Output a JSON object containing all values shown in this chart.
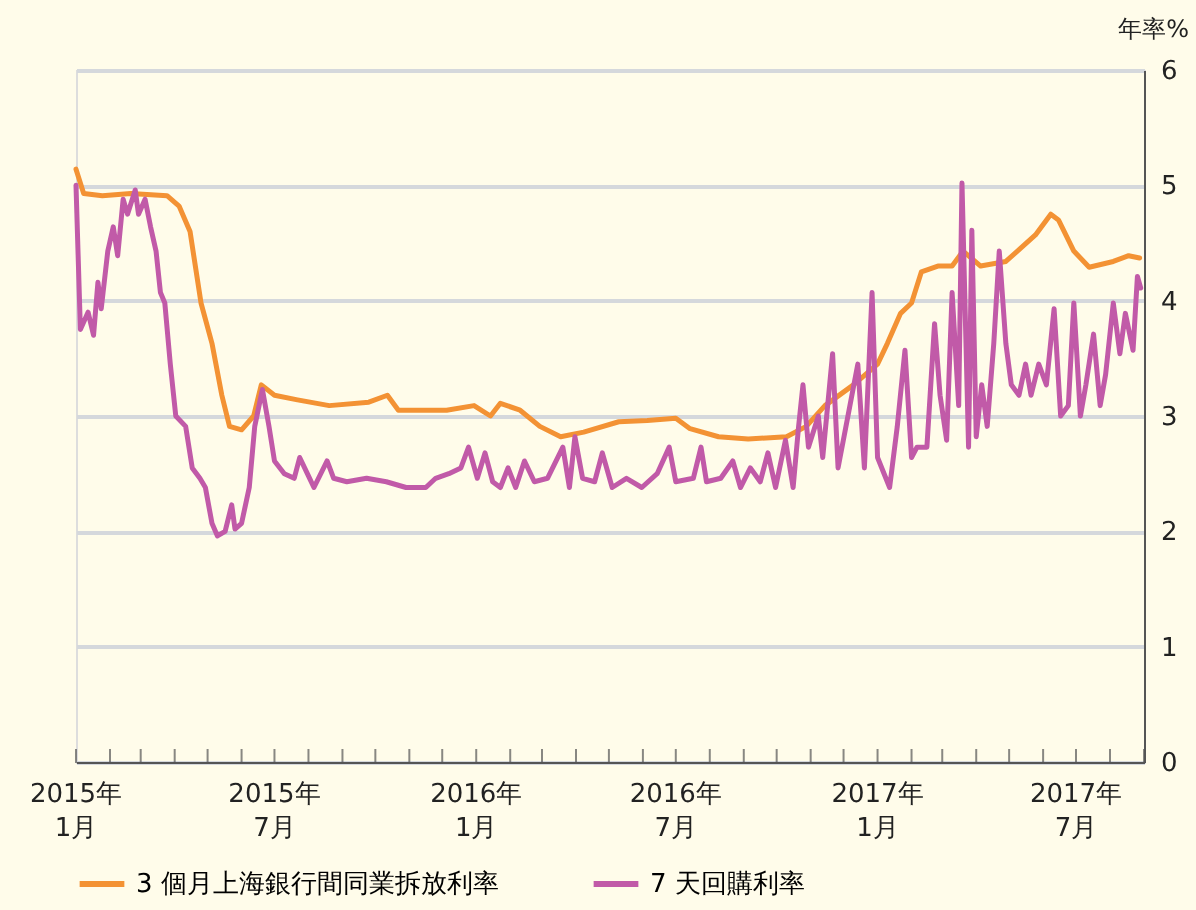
{
  "chart_data": {
    "type": "line",
    "ylabel": "年率%",
    "xlim": [
      "2015-01",
      "2017-09"
    ],
    "ylim": [
      0,
      6
    ],
    "yticks": [
      0,
      1,
      2,
      3,
      4,
      5,
      6
    ],
    "grid": "y",
    "legend": "bottom",
    "xticks": [
      {
        "value": "2015-01",
        "label": "2015年\n1月"
      },
      {
        "value": "2015-02",
        "label": null
      },
      {
        "value": "2015-03",
        "label": null
      },
      {
        "value": "2015-04",
        "label": null
      },
      {
        "value": "2015-05",
        "label": null
      },
      {
        "value": "2015-06",
        "label": null
      },
      {
        "value": "2015-07",
        "label": "2015年\n7月"
      },
      {
        "value": "2015-08",
        "label": null
      },
      {
        "value": "2015-09",
        "label": null
      },
      {
        "value": "2015-10",
        "label": null
      },
      {
        "value": "2015-11",
        "label": null
      },
      {
        "value": "2015-12",
        "label": null
      },
      {
        "value": "2016-01",
        "label": "2016年\n1月"
      },
      {
        "value": "2016-02",
        "label": null
      },
      {
        "value": "2016-03",
        "label": null
      },
      {
        "value": "2016-04",
        "label": null
      },
      {
        "value": "2016-05",
        "label": null
      },
      {
        "value": "2016-06",
        "label": null
      },
      {
        "value": "2016-07",
        "label": "2016年\n7月"
      },
      {
        "value": "2016-08",
        "label": null
      },
      {
        "value": "2016-09",
        "label": null
      },
      {
        "value": "2016-10",
        "label": null
      },
      {
        "value": "2016-11",
        "label": null
      },
      {
        "value": "2016-12",
        "label": null
      },
      {
        "value": "2017-01",
        "label": "2017年\n1月"
      },
      {
        "value": "2017-02",
        "label": null
      },
      {
        "value": "2017-03",
        "label": null
      },
      {
        "value": "2017-04",
        "label": null
      },
      {
        "value": "2017-05",
        "label": null
      },
      {
        "value": "2017-06",
        "label": null
      },
      {
        "value": "2017-07",
        "label": "2017年\n7月"
      },
      {
        "value": "2017-08",
        "label": null
      },
      {
        "value": "2017-09",
        "label": null
      }
    ],
    "series": [
      {
        "name": "3 個月上海銀行間同業拆放利率",
        "color": "#f39234",
        "x": [
          "2015-01-01",
          "2015-01-08",
          "2015-01-25",
          "2015-02-20",
          "2015-03-25",
          "2015-04-05",
          "2015-04-15",
          "2015-04-25",
          "2015-05-05",
          "2015-05-14",
          "2015-05-21",
          "2015-06-01",
          "2015-06-12",
          "2015-06-19",
          "2015-07-01",
          "2015-07-22",
          "2015-08-20",
          "2015-09-25",
          "2015-10-12",
          "2015-10-22",
          "2015-12-05",
          "2015-12-30",
          "2016-01-14",
          "2016-01-23",
          "2016-02-10",
          "2016-02-28",
          "2016-03-18",
          "2016-04-08",
          "2016-05-10",
          "2016-06-05",
          "2016-07-01",
          "2016-07-14",
          "2016-08-09",
          "2016-09-05",
          "2016-10-10",
          "2016-10-28",
          "2016-11-14",
          "2016-12-10",
          "2017-01-01",
          "2017-01-10",
          "2017-01-22",
          "2017-02-01",
          "2017-02-10",
          "2017-02-25",
          "2017-03-10",
          "2017-03-20",
          "2017-04-05",
          "2017-04-28",
          "2017-05-25",
          "2017-06-08",
          "2017-06-15",
          "2017-06-29",
          "2017-07-13",
          "2017-08-04",
          "2017-08-18",
          "2017-08-28"
        ],
        "values": [
          5.14,
          4.93,
          4.91,
          4.93,
          4.91,
          4.82,
          4.6,
          3.98,
          3.63,
          3.18,
          2.91,
          2.88,
          3.0,
          3.27,
          3.18,
          3.14,
          3.09,
          3.12,
          3.18,
          3.05,
          3.05,
          3.09,
          3.0,
          3.11,
          3.05,
          2.91,
          2.82,
          2.86,
          2.95,
          2.96,
          2.98,
          2.89,
          2.82,
          2.8,
          2.82,
          2.91,
          3.09,
          3.27,
          3.45,
          3.63,
          3.89,
          3.98,
          4.25,
          4.3,
          4.3,
          4.43,
          4.3,
          4.34,
          4.57,
          4.75,
          4.7,
          4.43,
          4.29,
          4.34,
          4.39,
          4.37
        ]
      },
      {
        "name": "7 天回購利率",
        "color": "#c15aa8",
        "x": [
          "2015-01-01",
          "2015-01-05",
          "2015-01-12",
          "2015-01-17",
          "2015-01-21",
          "2015-01-24",
          "2015-01-30",
          "2015-02-04",
          "2015-02-08",
          "2015-02-13",
          "2015-02-17",
          "2015-02-24",
          "2015-02-27",
          "2015-03-05",
          "2015-03-10",
          "2015-03-15",
          "2015-03-19",
          "2015-03-23",
          "2015-03-28",
          "2015-04-02",
          "2015-04-11",
          "2015-04-17",
          "2015-04-24",
          "2015-04-29",
          "2015-05-05",
          "2015-05-10",
          "2015-05-17",
          "2015-05-23",
          "2015-05-26",
          "2015-06-01",
          "2015-06-08",
          "2015-06-13",
          "2015-06-20",
          "2015-06-26",
          "2015-07-01",
          "2015-07-10",
          "2015-07-19",
          "2015-07-24",
          "2015-07-31",
          "2015-08-06",
          "2015-08-18",
          "2015-08-24",
          "2015-09-05",
          "2015-09-23",
          "2015-10-11",
          "2015-10-29",
          "2015-11-16",
          "2015-11-25",
          "2015-12-07",
          "2015-12-18",
          "2015-12-25",
          "2016-01-02",
          "2016-01-09",
          "2016-01-16",
          "2016-01-23",
          "2016-01-30",
          "2016-02-06",
          "2016-02-14",
          "2016-02-23",
          "2016-03-06",
          "2016-03-20",
          "2016-03-26",
          "2016-03-31",
          "2016-04-07",
          "2016-04-18",
          "2016-04-25",
          "2016-05-04",
          "2016-05-17",
          "2016-05-31",
          "2016-06-14",
          "2016-06-25",
          "2016-07-01",
          "2016-07-17",
          "2016-07-24",
          "2016-07-29",
          "2016-08-11",
          "2016-08-22",
          "2016-08-29",
          "2016-09-07",
          "2016-09-16",
          "2016-09-23",
          "2016-09-30",
          "2016-10-09",
          "2016-10-16",
          "2016-10-21",
          "2016-10-25",
          "2016-10-30",
          "2016-11-08",
          "2016-11-12",
          "2016-11-21",
          "2016-11-26",
          "2016-12-05",
          "2016-12-14",
          "2016-12-20",
          "2016-12-27",
          "2017-01-01",
          "2017-01-12",
          "2017-01-19",
          "2017-01-26",
          "2017-02-01",
          "2017-02-06",
          "2017-02-15",
          "2017-02-22",
          "2017-02-27",
          "2017-03-05",
          "2017-03-10",
          "2017-03-16",
          "2017-03-19",
          "2017-03-25",
          "2017-03-28",
          "2017-04-01",
          "2017-04-06",
          "2017-04-11",
          "2017-04-17",
          "2017-04-22",
          "2017-04-28",
          "2017-05-03",
          "2017-05-10",
          "2017-05-16",
          "2017-05-21",
          "2017-05-28",
          "2017-06-04",
          "2017-06-11",
          "2017-06-17",
          "2017-06-24",
          "2017-06-29",
          "2017-07-05",
          "2017-07-10",
          "2017-07-17",
          "2017-07-23",
          "2017-07-28",
          "2017-08-04",
          "2017-08-10",
          "2017-08-15",
          "2017-08-22",
          "2017-08-26",
          "2017-08-29"
        ],
        "values": [
          5.0,
          3.75,
          3.9,
          3.7,
          4.16,
          3.93,
          4.43,
          4.64,
          4.39,
          4.88,
          4.75,
          4.96,
          4.75,
          4.88,
          4.64,
          4.43,
          4.07,
          3.98,
          3.45,
          3.0,
          2.91,
          2.55,
          2.46,
          2.38,
          2.07,
          1.96,
          2.0,
          2.23,
          2.02,
          2.07,
          2.38,
          2.91,
          3.23,
          2.91,
          2.61,
          2.5,
          2.46,
          2.64,
          2.5,
          2.38,
          2.61,
          2.46,
          2.43,
          2.46,
          2.43,
          2.38,
          2.38,
          2.46,
          2.5,
          2.55,
          2.73,
          2.46,
          2.68,
          2.43,
          2.38,
          2.55,
          2.38,
          2.61,
          2.43,
          2.46,
          2.73,
          2.38,
          2.82,
          2.46,
          2.43,
          2.68,
          2.38,
          2.46,
          2.38,
          2.5,
          2.73,
          2.43,
          2.46,
          2.73,
          2.43,
          2.46,
          2.61,
          2.38,
          2.55,
          2.43,
          2.68,
          2.38,
          2.79,
          2.38,
          2.91,
          3.27,
          2.73,
          3.0,
          2.64,
          3.54,
          2.55,
          3.0,
          3.45,
          2.55,
          4.07,
          2.64,
          2.38,
          2.91,
          3.57,
          2.64,
          2.73,
          2.73,
          3.8,
          3.18,
          2.79,
          4.07,
          3.09,
          5.02,
          2.73,
          4.61,
          2.82,
          3.27,
          2.91,
          3.63,
          4.43,
          3.63,
          3.27,
          3.18,
          3.45,
          3.18,
          3.45,
          3.27,
          3.93,
          3.0,
          3.09,
          3.98,
          3.0,
          3.27,
          3.71,
          3.09,
          3.36,
          3.98,
          3.54,
          3.89,
          3.57,
          4.21,
          4.11
        ]
      }
    ]
  }
}
